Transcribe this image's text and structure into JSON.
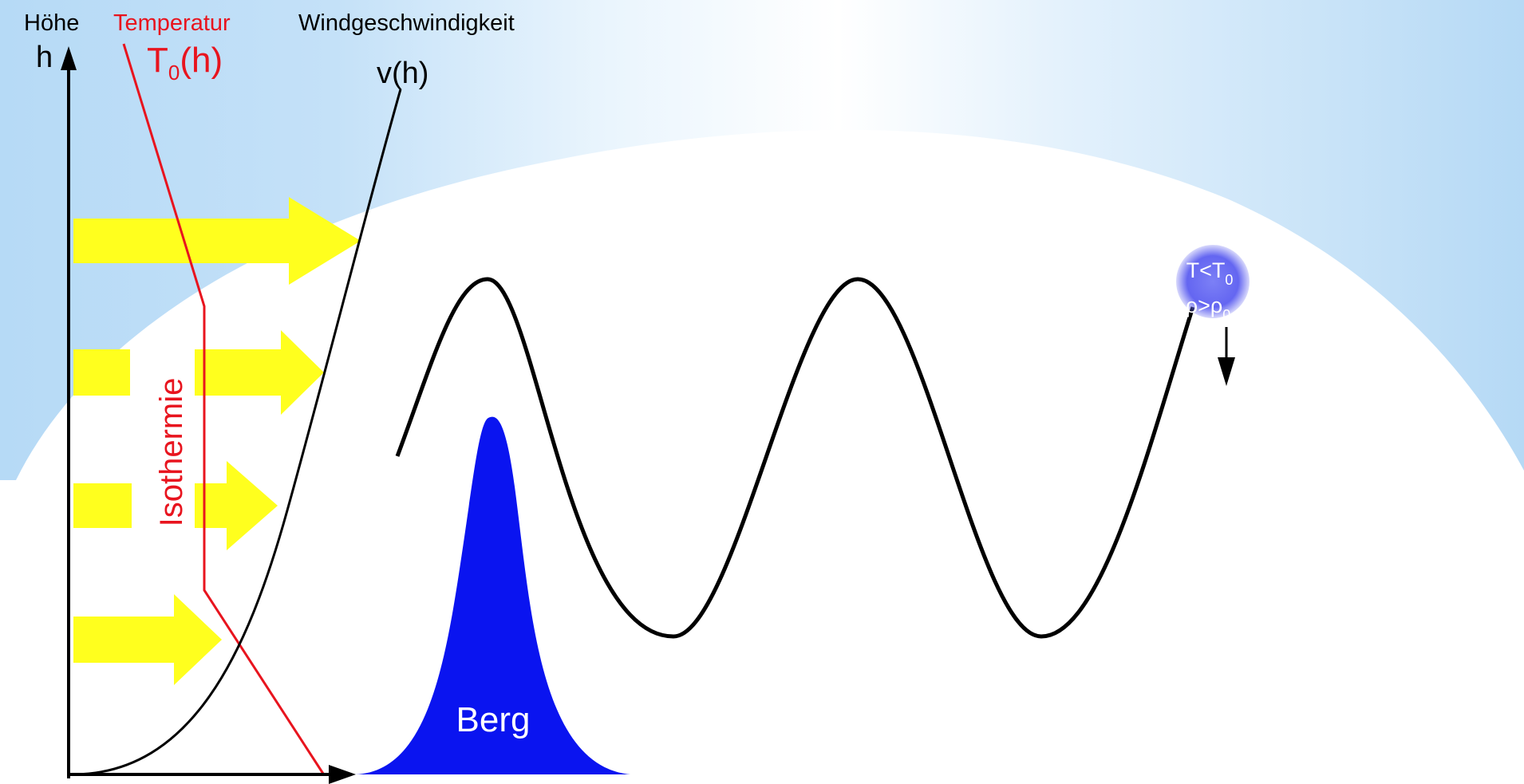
{
  "labels": {
    "height_word": "Höhe",
    "temperature_word": "Temperatur",
    "wind_word": "Windgeschwindigkeit",
    "h_axis": "h",
    "temp_symbol": "T",
    "temp_subscript": "0",
    "temp_arg": "(h)",
    "wind_symbol": "v(h)",
    "isothermie": "Isothermie",
    "mountain": "Berg"
  },
  "parcel": {
    "line1_main": "T<T",
    "line1_sub": "0",
    "line2_main": "ρ>ρ",
    "line2_sub": "0"
  },
  "colors": {
    "sky_blue": "#b7dbf7",
    "cloud_white": "#ffffff",
    "mountain_blue": "#0a14f0",
    "wind_arrow_yellow": "#ffff1e",
    "temperature_red": "#e8141e",
    "line_black": "#000000",
    "parcel_blue": "#6a6cf2"
  },
  "icons": {
    "wind_arrows": "right-arrow-icon",
    "axis_arrows": "axis-arrowhead-icon",
    "sinking": "down-arrow-icon"
  }
}
